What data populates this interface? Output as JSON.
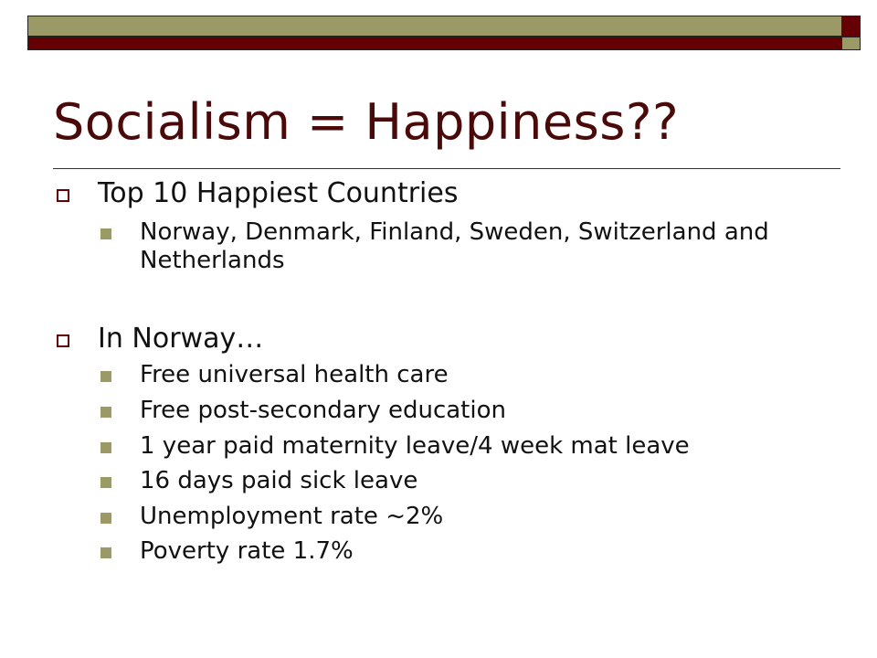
{
  "title": "Socialism = Happiness??",
  "colors": {
    "olive": "#9b9a66",
    "maroon": "#650005",
    "title": "#4a0a0a"
  },
  "sections": [
    {
      "heading": "Top 10 Happiest Countries",
      "items": [
        "Norway, Denmark, Finland, Sweden, Switzerland and Netherlands"
      ]
    },
    {
      "heading": "In Norway…",
      "items": [
        "Free universal health care",
        "Free post-secondary education",
        "1 year paid maternity leave/4 week mat leave",
        "16 days paid sick leave",
        "Unemployment rate ~2%",
        "Poverty rate 1.7%"
      ]
    }
  ]
}
